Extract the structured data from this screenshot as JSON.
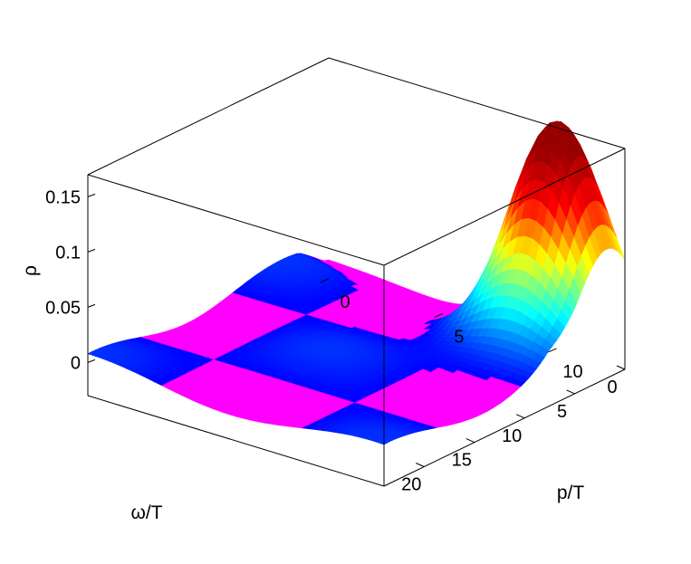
{
  "chart_data": {
    "type": "surface",
    "title": "",
    "xlabel": "ω/T",
    "ylabel": "p/T",
    "zlabel": "ρ",
    "xlim": [
      0,
      24
    ],
    "ylim": [
      0,
      13
    ],
    "zlim": [
      -0.03,
      0.17
    ],
    "x_ticks": [
      0,
      5,
      10,
      15,
      20
    ],
    "y_ticks": [
      0,
      5,
      10
    ],
    "z_ticks": [
      0,
      0.05,
      0.1,
      0.15
    ],
    "x_tick_labels": [
      "0",
      "5",
      "10",
      "15",
      "20"
    ],
    "y_tick_labels": [
      "0",
      "5",
      "10"
    ],
    "z_tick_labels": [
      "0",
      "0.05",
      "0.1",
      "0.15"
    ],
    "grid": false,
    "colormap": "hsv",
    "color_range": [
      0,
      0.165
    ],
    "color_ramp": [
      "#ff00ff",
      "#0000ff",
      "#00ffff",
      "#ffff00",
      "#ff0000",
      "#990000"
    ],
    "series": [
      {
        "component": "peak-ridge",
        "peak_value": 0.163,
        "peak_omega": 1.5,
        "peak_p": 10.5,
        "width_omega": 3.8,
        "width_p": 2.4
      },
      {
        "component": "low-momentum-spacelike-region",
        "omega_range": [
          0,
          4.5
        ],
        "p_range": [
          0,
          13
        ],
        "sign": "negative",
        "min_value": -0.02
      }
    ]
  }
}
